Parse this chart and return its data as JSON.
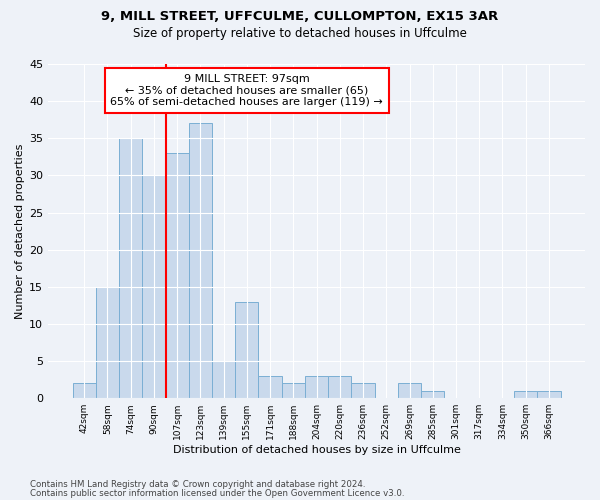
{
  "title1": "9, MILL STREET, UFFCULME, CULLOMPTON, EX15 3AR",
  "title2": "Size of property relative to detached houses in Uffculme",
  "xlabel": "Distribution of detached houses by size in Uffculme",
  "ylabel": "Number of detached properties",
  "categories": [
    "42sqm",
    "58sqm",
    "74sqm",
    "90sqm",
    "107sqm",
    "123sqm",
    "139sqm",
    "155sqm",
    "171sqm",
    "188sqm",
    "204sqm",
    "220sqm",
    "236sqm",
    "252sqm",
    "269sqm",
    "285sqm",
    "301sqm",
    "317sqm",
    "334sqm",
    "350sqm",
    "366sqm"
  ],
  "values": [
    2,
    15,
    35,
    30,
    33,
    37,
    5,
    13,
    3,
    2,
    3,
    3,
    2,
    0,
    2,
    1,
    0,
    0,
    0,
    1,
    1
  ],
  "bar_color": "#c9d9ec",
  "bar_edge_color": "#7bafd4",
  "red_line_x": 3.5,
  "annotation_text1": "9 MILL STREET: 97sqm",
  "annotation_text2": "← 35% of detached houses are smaller (65)",
  "annotation_text3": "65% of semi-detached houses are larger (119) →",
  "annotation_box_color": "white",
  "annotation_border_color": "red",
  "red_line_color": "red",
  "ylim": [
    0,
    45
  ],
  "yticks": [
    0,
    5,
    10,
    15,
    20,
    25,
    30,
    35,
    40,
    45
  ],
  "footer1": "Contains HM Land Registry data © Crown copyright and database right 2024.",
  "footer2": "Contains public sector information licensed under the Open Government Licence v3.0.",
  "bg_color": "#eef2f8",
  "grid_color": "#ffffff"
}
